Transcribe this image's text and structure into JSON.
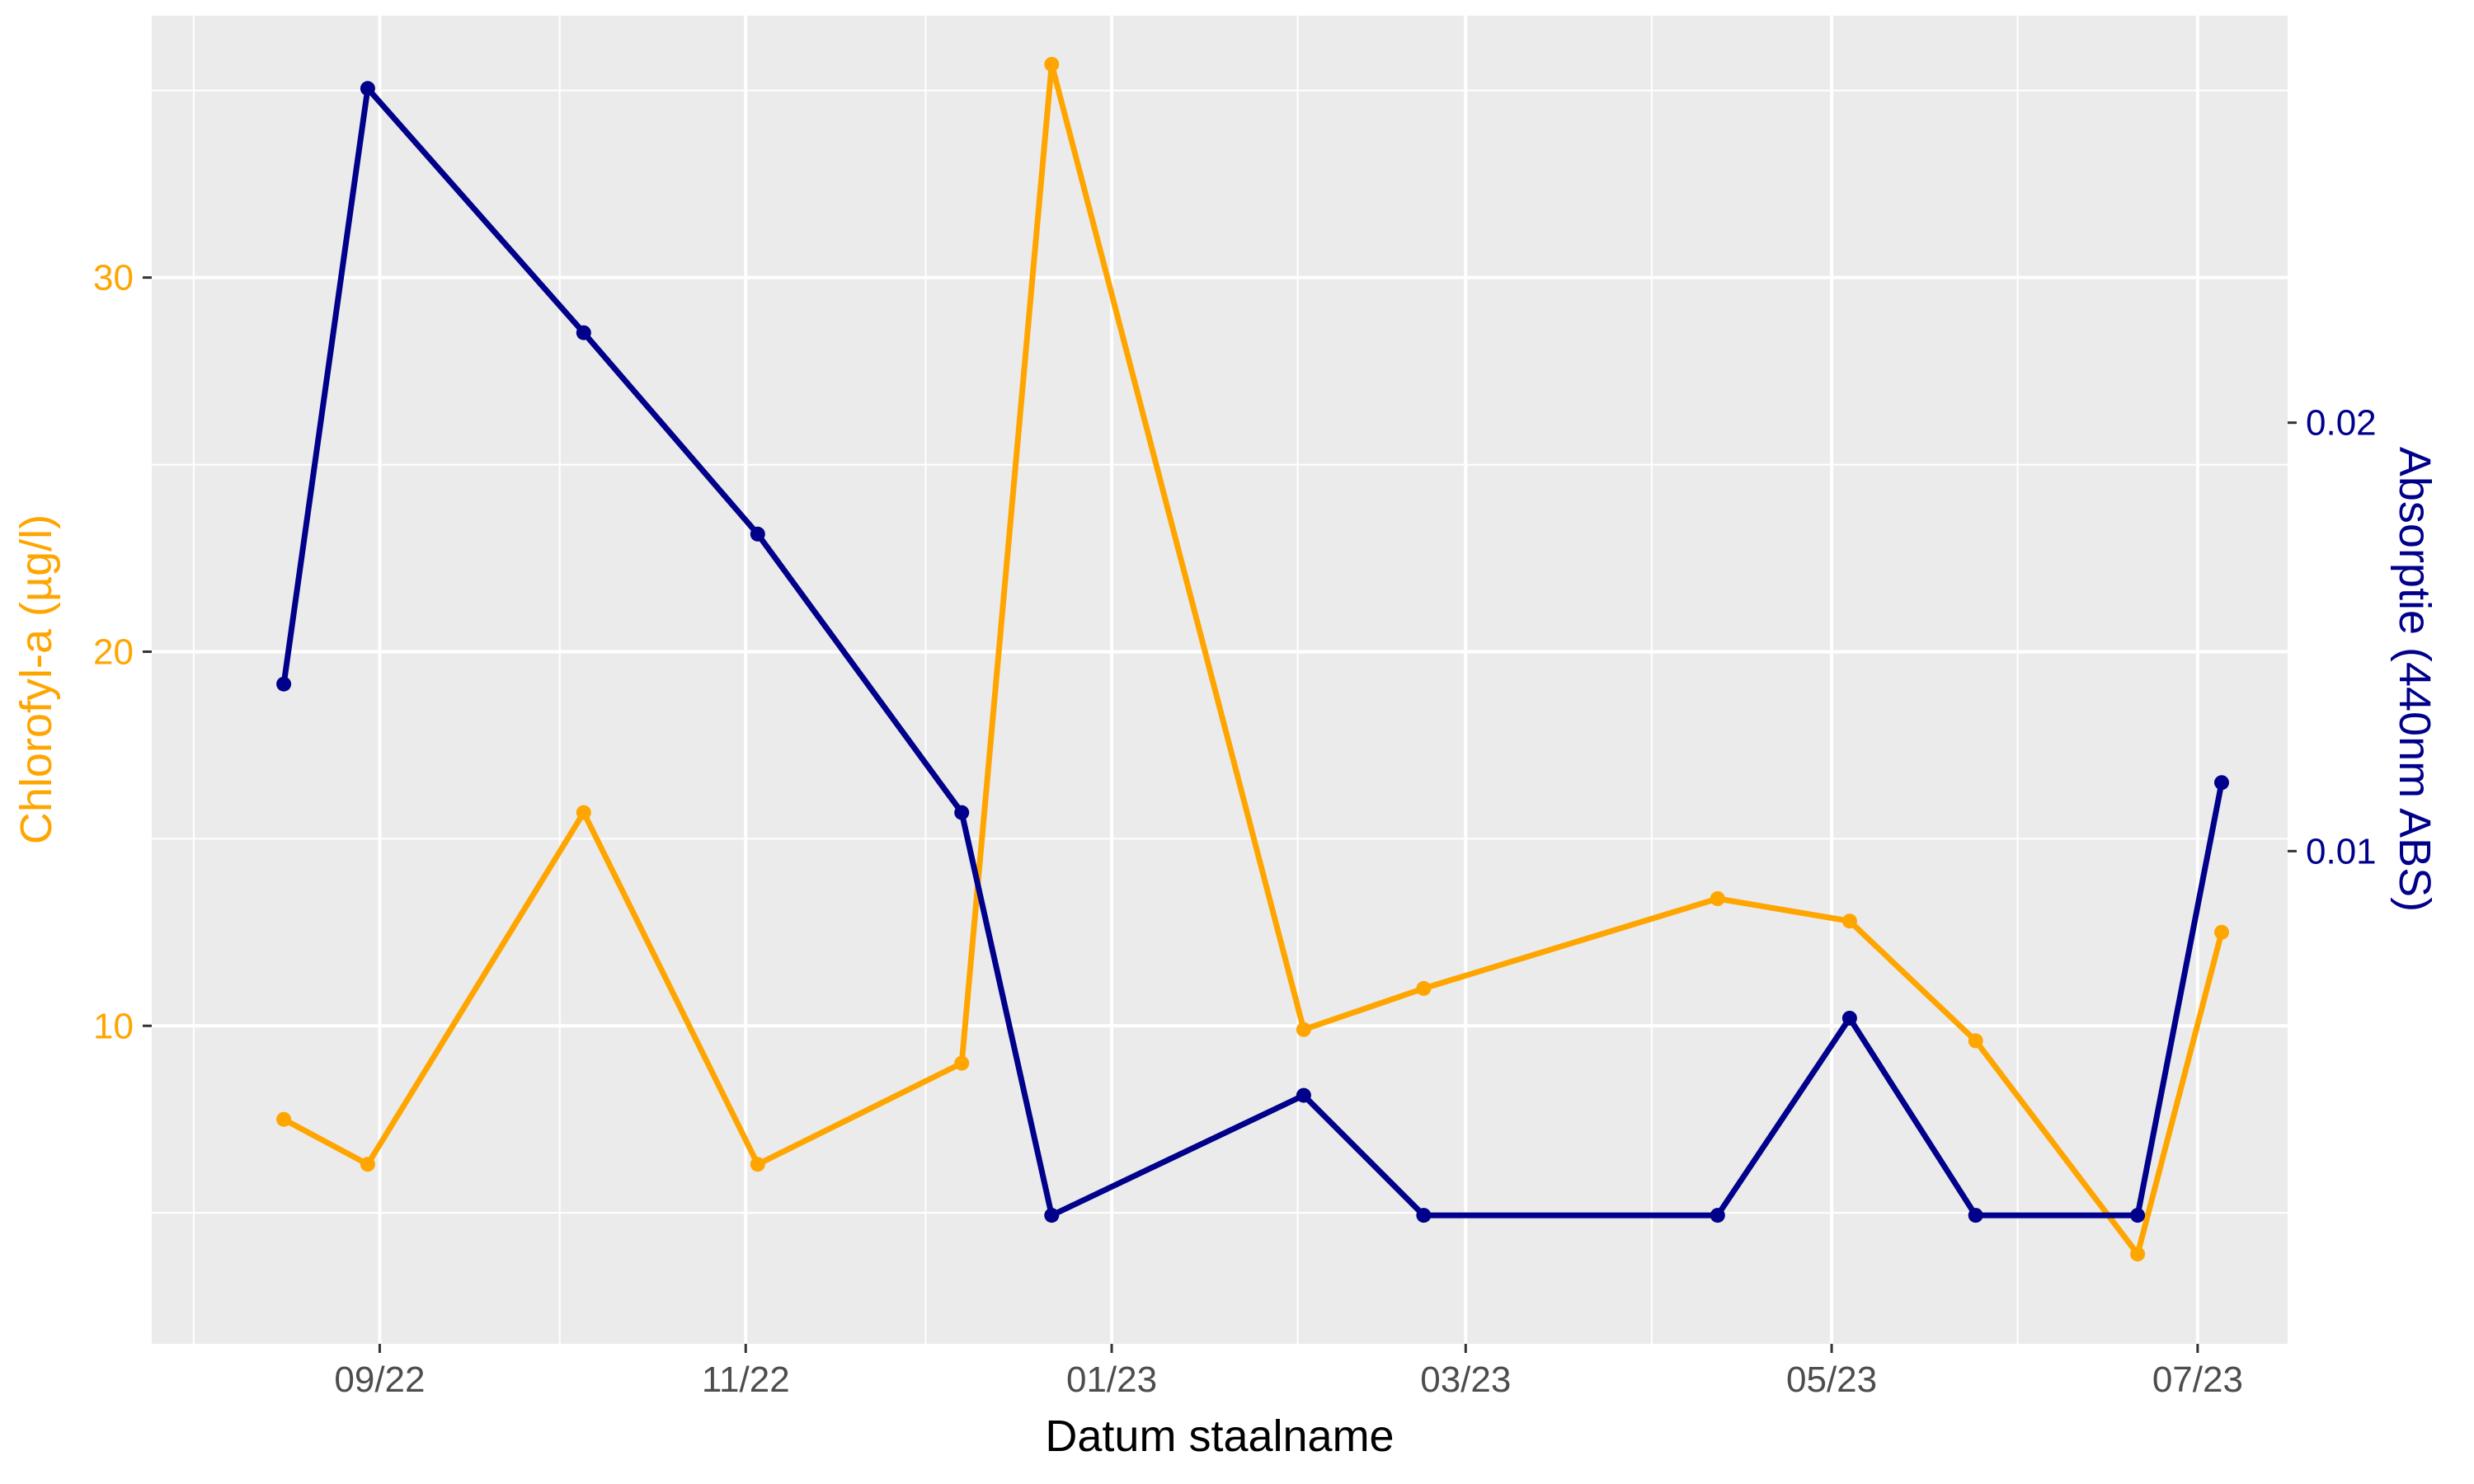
{
  "chart_data": {
    "type": "line",
    "title": "",
    "xlabel": "Datum staalname",
    "ylabel_left": "Chlorofyl-a (µg/l)",
    "ylabel_right": "Absorptie (440nm ABS)",
    "grid": true,
    "legend": "none",
    "xlim": [
      "2022-07-25",
      "2023-07-16"
    ],
    "ylim_left": [
      1.5,
      37
    ],
    "ylim_right": [
      -0.0015,
      0.0295
    ],
    "x_ticks": [
      {
        "date": "2022-09-01",
        "label": "09/22"
      },
      {
        "date": "2022-11-01",
        "label": "11/22"
      },
      {
        "date": "2023-01-01",
        "label": "01/23"
      },
      {
        "date": "2023-03-01",
        "label": "03/23"
      },
      {
        "date": "2023-05-01",
        "label": "05/23"
      },
      {
        "date": "2023-07-01",
        "label": "07/23"
      }
    ],
    "y_ticks_left": [
      {
        "value": 10,
        "label": "10"
      },
      {
        "value": 20,
        "label": "20"
      },
      {
        "value": 30,
        "label": "30"
      }
    ],
    "y_ticks_right": [
      {
        "value": 0.01,
        "label": "0.01"
      },
      {
        "value": 0.02,
        "label": "0.02"
      }
    ],
    "x_minor_dates": [
      "2022-08-01",
      "2022-10-01",
      "2022-12-01",
      "2023-02-01",
      "2023-04-01",
      "2023-06-01"
    ],
    "y_minor_left": [
      5,
      15,
      25,
      35
    ],
    "colors": {
      "chlorofyl": "#FFA500",
      "absorptie": "#00008B",
      "panel": "#EBEBEB",
      "grid": "#FFFFFF",
      "tick_text": "#4D4D4D",
      "axis_title": "#000000"
    },
    "series": [
      {
        "key": "chlorofyl",
        "axis": "left",
        "color": "#FFA500",
        "points": [
          {
            "date": "2022-08-16",
            "value": 7.5
          },
          {
            "date": "2022-08-30",
            "value": 6.3
          },
          {
            "date": "2022-10-05",
            "value": 15.7
          },
          {
            "date": "2022-11-03",
            "value": 6.3
          },
          {
            "date": "2022-12-07",
            "value": 9.0
          },
          {
            "date": "2022-12-22",
            "value": 35.7
          },
          {
            "date": "2023-02-02",
            "value": 9.9
          },
          {
            "date": "2023-02-22",
            "value": 11.0
          },
          {
            "date": "2023-04-12",
            "value": 13.4
          },
          {
            "date": "2023-05-04",
            "value": 12.8
          },
          {
            "date": "2023-05-25",
            "value": 9.6
          },
          {
            "date": "2023-06-21",
            "value": 3.9
          },
          {
            "date": "2023-07-05",
            "value": 12.5
          }
        ]
      },
      {
        "key": "absorptie",
        "axis": "right",
        "color": "#00008B",
        "points": [
          {
            "date": "2022-08-16",
            "value": 0.0139
          },
          {
            "date": "2022-08-30",
            "value": 0.0278
          },
          {
            "date": "2022-10-05",
            "value": 0.0221
          },
          {
            "date": "2022-11-03",
            "value": 0.0174
          },
          {
            "date": "2022-12-07",
            "value": 0.0109
          },
          {
            "date": "2022-12-22",
            "value": 0.0015
          },
          {
            "date": "2023-02-02",
            "value": 0.0043
          },
          {
            "date": "2023-02-22",
            "value": 0.0015
          },
          {
            "date": "2023-04-12",
            "value": 0.0015
          },
          {
            "date": "2023-05-04",
            "value": 0.0061
          },
          {
            "date": "2023-05-25",
            "value": 0.0015
          },
          {
            "date": "2023-06-21",
            "value": 0.0015
          },
          {
            "date": "2023-07-05",
            "value": 0.0116
          }
        ]
      }
    ]
  }
}
